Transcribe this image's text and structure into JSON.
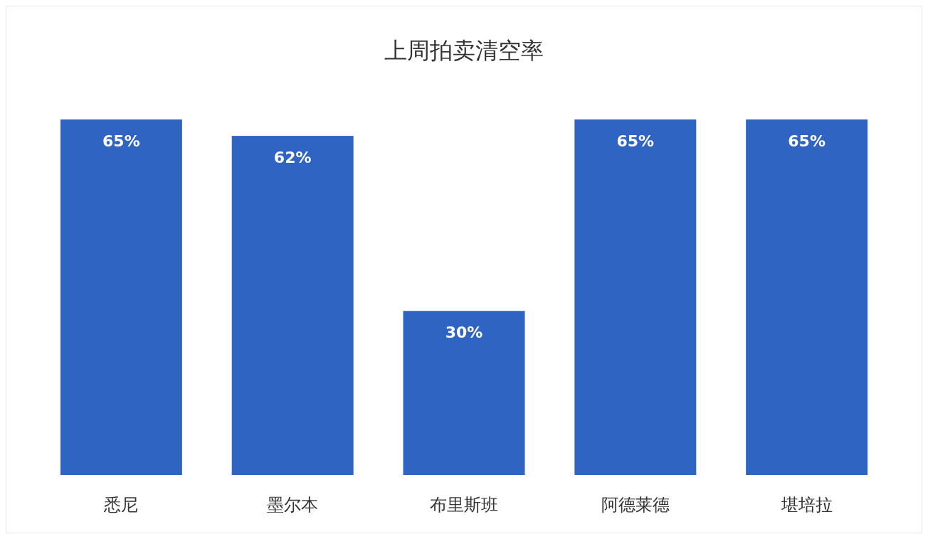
{
  "chart_data": {
    "type": "bar",
    "title": "上周拍卖清空率",
    "categories": [
      "悉尼",
      "墨尔本",
      "布里斯班",
      "阿德莱德",
      "堪培拉"
    ],
    "values": [
      65,
      62,
      30,
      65,
      65
    ],
    "value_labels": [
      "65%",
      "62%",
      "30%",
      "65%",
      "65%"
    ],
    "color": "#3064c2"
  }
}
